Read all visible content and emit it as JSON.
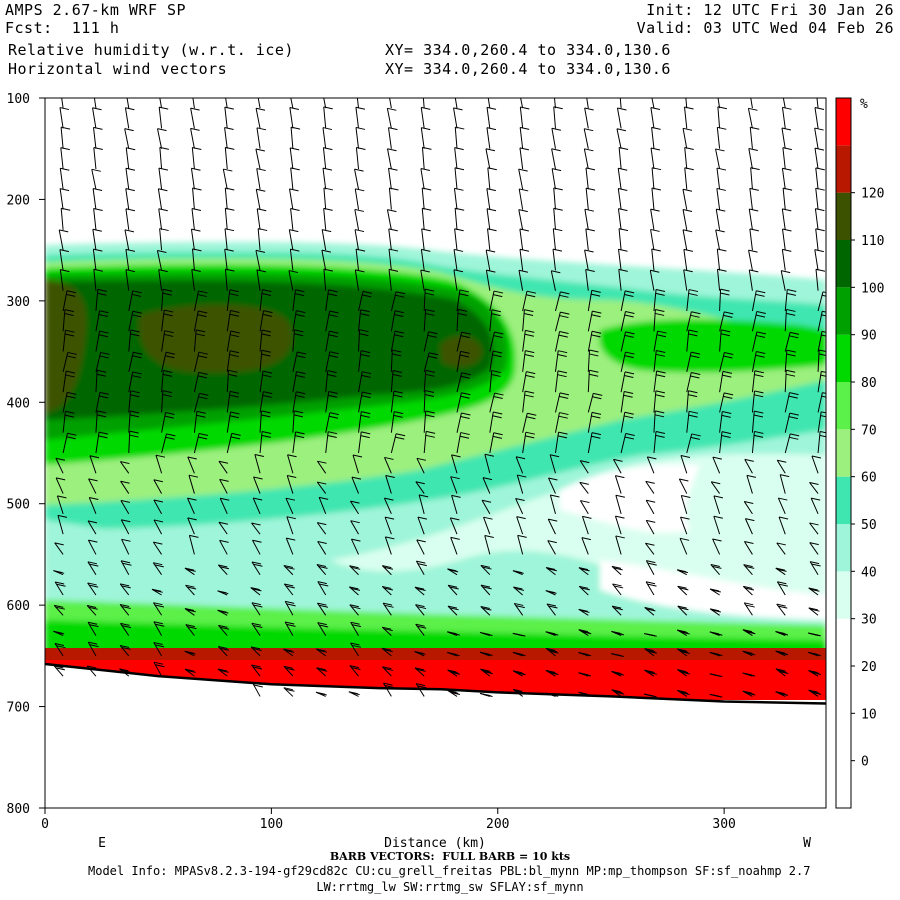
{
  "header": {
    "model": "AMPS 2.67-km WRF SP",
    "fcst": "Fcst:  111 h",
    "field1": "Relative humidity (w.r.t. ice)",
    "field2": "Horizontal wind vectors",
    "init": "Init: 12 UTC Fri 30 Jan 26",
    "valid": "Valid: 03 UTC Wed 04 Feb 26",
    "xy1": "XY= 334.0,260.4 to 334.0,130.6",
    "xy2": "XY= 334.0,260.4 to 334.0,130.6"
  },
  "footer": {
    "barb_note": "BARB VECTORS:  FULL BARB = 10 kts",
    "model_info": "Model Info: MPASv8.2.3-194-gf29cd82c CU:cu_grell_freitas PBL:bl_mynn MP:mp_thompson SF:sf_noahmp 2.7",
    "model_info2": "LW:rrtmg_lw SW:rrtmg_sw SFLAY:sf_mynn"
  },
  "chart_data": {
    "type": "heatmap",
    "title": "Relative humidity (w.r.t. ice)",
    "xlabel": "Distance (km)",
    "ylabel": "",
    "x_end_labels": {
      "left": "E",
      "right": "W"
    },
    "xlim": [
      0,
      345
    ],
    "ylim": [
      800,
      100
    ],
    "y_reversed": true,
    "x_ticks": [
      0,
      100,
      200,
      300
    ],
    "y_ticks": [
      100,
      200,
      300,
      400,
      500,
      600,
      700,
      800
    ],
    "colorbar": {
      "unit": "%",
      "ticks": [
        0,
        10,
        20,
        30,
        40,
        50,
        60,
        70,
        80,
        90,
        100,
        110,
        120
      ],
      "bins": [
        {
          "from": -10,
          "to": 30,
          "color": "#ffffff"
        },
        {
          "from": 30,
          "to": 40,
          "color": "#d9fff0"
        },
        {
          "from": 40,
          "to": 50,
          "color": "#9ff5d9"
        },
        {
          "from": 50,
          "to": 60,
          "color": "#40e6b0"
        },
        {
          "from": 60,
          "to": 70,
          "color": "#9cf07e"
        },
        {
          "from": 70,
          "to": 80,
          "color": "#5cf04a"
        },
        {
          "from": 80,
          "to": 90,
          "color": "#00d900"
        },
        {
          "from": 90,
          "to": 100,
          "color": "#00a000"
        },
        {
          "from": 100,
          "to": 110,
          "color": "#006600"
        },
        {
          "from": 110,
          "to": 120,
          "color": "#3d5200"
        },
        {
          "from": 120,
          "to": 130,
          "color": "#b81800"
        },
        {
          "from": 130,
          "to": 140,
          "color": "#ff0000"
        }
      ]
    },
    "rh_field": [
      {
        "region": "upper_dry",
        "x": [
          0,
          345
        ],
        "p": [
          100,
          250
        ],
        "rh": 20
      },
      {
        "region": "moist_layer",
        "x": [
          0,
          210
        ],
        "p": [
          270,
          440
        ],
        "rh": 95
      },
      {
        "region": "moist_core",
        "x": [
          0,
          120
        ],
        "p": [
          280,
          380
        ],
        "rh": 105
      },
      {
        "region": "mid_dry_slot",
        "x": [
          200,
          330
        ],
        "p": [
          440,
          540
        ],
        "rh": 25
      },
      {
        "region": "lower_moist",
        "x": [
          0,
          345
        ],
        "p": [
          540,
          650
        ],
        "rh": 55
      },
      {
        "region": "surface_saturated",
        "x": [
          0,
          345
        ],
        "p": [
          650,
          700
        ],
        "rh": 135
      }
    ],
    "terrain": {
      "x": [
        0,
        50,
        100,
        150,
        175,
        200,
        250,
        300,
        345
      ],
      "p": [
        658,
        670,
        678,
        682,
        683,
        686,
        690,
        695,
        697
      ]
    },
    "barb_unit": "10 kts per full barb"
  }
}
